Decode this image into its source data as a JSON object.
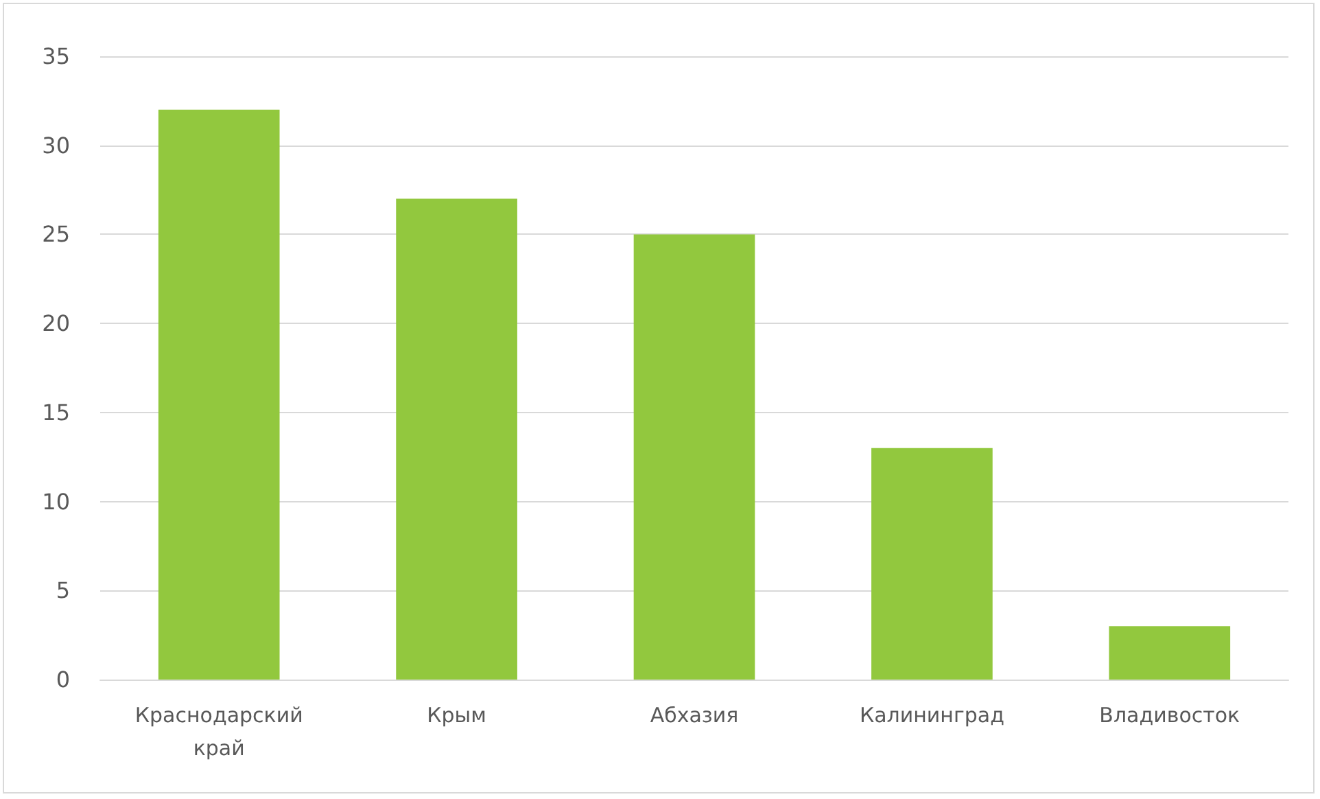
{
  "chart_data": {
    "type": "bar",
    "categories": [
      "Краснодарский край",
      "Крым",
      "Абхазия",
      "Калининград",
      "Владивосток"
    ],
    "values": [
      32,
      27,
      25,
      13,
      3
    ],
    "color": "#92c83e",
    "ylim": [
      0,
      35
    ],
    "yticks": [
      0,
      5,
      10,
      15,
      20,
      25,
      30,
      35
    ],
    "grid": "y"
  }
}
